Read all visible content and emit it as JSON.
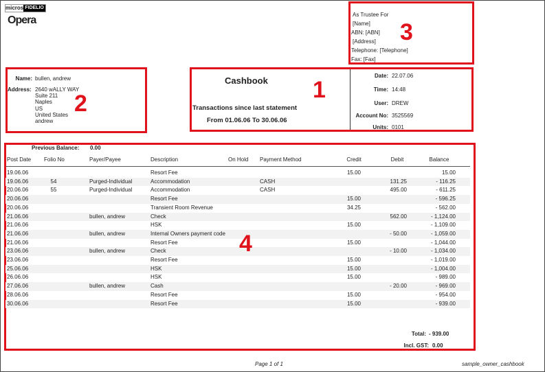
{
  "logo": {
    "brand": "micros",
    "sub": "FIDELIO",
    "product": "Opera"
  },
  "trustee": {
    "line1": "As Trustee For",
    "name": "[Name]",
    "abn": "ABN:  [ABN]",
    "address": "[Address]",
    "telephone": "Telephone:  [Telephone]",
    "fax": "Fax:  [Fax]"
  },
  "owner": {
    "name_label": "Name:",
    "name": "bullen, andrew",
    "address_label": "Address:",
    "address_lines": [
      "2640 wALLY WAY",
      "Suite 211",
      "Naples",
      "US",
      "United States",
      "andrew"
    ]
  },
  "title": {
    "heading": "Cashbook",
    "subtitle": "Transactions since last statement",
    "range": "From 01.06.06 To 30.06.06"
  },
  "info": {
    "date_label": "Date:",
    "date": "22.07.06",
    "time_label": "Time:",
    "time": "14:48",
    "user_label": "User:",
    "user": "DREW",
    "account_label": "Account No:",
    "account": "3525569",
    "units_label": "Units:",
    "units": "0101"
  },
  "annotations": [
    "1",
    "2",
    "3",
    "4"
  ],
  "prev_balance": {
    "label": "Previous Balance:",
    "value": "0.00"
  },
  "columns": [
    "Post Date",
    "Folio No",
    "Payer/Payee",
    "Description",
    "On Hold",
    "Payment Method",
    "Credit",
    "Debit",
    "Balance"
  ],
  "rows": [
    [
      "19.06.06",
      "",
      "",
      "Resort Fee",
      "",
      "",
      "15.00",
      "",
      "15.00"
    ],
    [
      "19.06.06",
      "54",
      "Purged-Individual",
      "Accommodation",
      "",
      "CASH",
      "",
      "131.25",
      "- 116.25"
    ],
    [
      "20.06.06",
      "55",
      "Purged-Individual",
      "Accommodation",
      "",
      "CASH",
      "",
      "495.00",
      "- 611.25"
    ],
    [
      "20.06.06",
      "",
      "",
      "Resort Fee",
      "",
      "",
      "15.00",
      "",
      "- 596.25"
    ],
    [
      "20.06.06",
      "",
      "",
      "Transient Room Revenue",
      "",
      "",
      "34.25",
      "",
      "- 562.00"
    ],
    [
      "21.06.06",
      "",
      "bullen, andrew",
      "Check",
      "",
      "",
      "",
      "562.00",
      "- 1,124.00"
    ],
    [
      "21.06.06",
      "",
      "",
      "HSK",
      "",
      "",
      "15.00",
      "",
      "- 1,109.00"
    ],
    [
      "21.06.06",
      "",
      "bullen, andrew",
      "Internal Owners payment code",
      "",
      "",
      "",
      "- 50.00",
      "- 1,059.00"
    ],
    [
      "21.06.06",
      "",
      "",
      "Resort Fee",
      "",
      "",
      "15.00",
      "",
      "- 1,044.00"
    ],
    [
      "23.06.06",
      "",
      "bullen, andrew",
      "Check",
      "",
      "",
      "",
      "- 10.00",
      "- 1,034.00"
    ],
    [
      "23.06.06",
      "",
      "",
      "Resort Fee",
      "",
      "",
      "15.00",
      "",
      "- 1,019.00"
    ],
    [
      "25.06.06",
      "",
      "",
      "HSK",
      "",
      "",
      "15.00",
      "",
      "- 1,004.00"
    ],
    [
      "26.06.06",
      "",
      "",
      "HSK",
      "",
      "",
      "15.00",
      "",
      "- 989.00"
    ],
    [
      "27.06.06",
      "",
      "bullen, andrew",
      "Cash",
      "",
      "",
      "",
      "- 20.00",
      "- 969.00"
    ],
    [
      "28.06.06",
      "",
      "",
      "Resort Fee",
      "",
      "",
      "15.00",
      "",
      "- 954.00"
    ],
    [
      "30.06.06",
      "",
      "",
      "Resort Fee",
      "",
      "",
      "15.00",
      "",
      "- 939.00"
    ]
  ],
  "totals": {
    "total_label": "Total:",
    "total": "- 939.00",
    "gst_label": "Incl. GST:",
    "gst": "0.00"
  },
  "footer": {
    "page": "Page 1 of 1",
    "report": "sample_owner_cashbook"
  },
  "colors": {
    "annotation": "#e0121b",
    "row_alt": "#f2f2f2"
  }
}
